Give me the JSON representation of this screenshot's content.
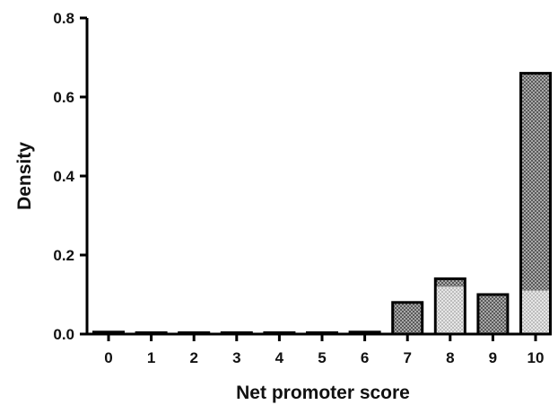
{
  "chart_data": {
    "type": "bar",
    "xlabel": "Net promoter score",
    "ylabel": "Density",
    "ylim": [
      0,
      0.8
    ],
    "yticks": [
      "0.0",
      "0.2",
      "0.4",
      "0.6",
      "0.8"
    ],
    "categories": [
      "0",
      "1",
      "2",
      "3",
      "4",
      "5",
      "6",
      "7",
      "8",
      "9",
      "10"
    ],
    "values": [
      0.005,
      0,
      0,
      0,
      0,
      0,
      0.005,
      0.08,
      0.14,
      0.1,
      0.66
    ],
    "highlight_values": [
      0,
      0,
      0,
      0,
      0,
      0,
      0,
      0,
      0.12,
      0,
      0.11
    ],
    "grid": false,
    "colors": {
      "bar_fill": "#6f6f6f",
      "bar_stroke": "#000000",
      "highlight_fill": "#cfcfcf",
      "axis": "#000000"
    }
  }
}
